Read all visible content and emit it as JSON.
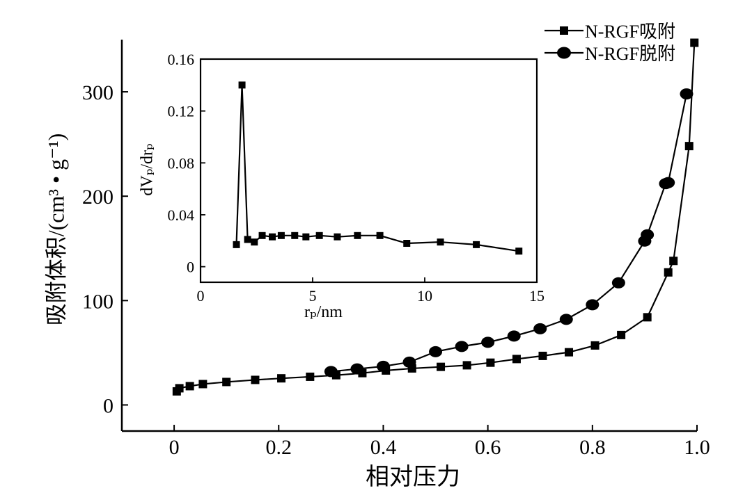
{
  "chart_data": [
    {
      "type": "line",
      "xlabel": "相对压力",
      "ylabel": "吸附体积/(cm³ • g⁻¹)",
      "xlim": [
        -0.1,
        1.0
      ],
      "ylim": [
        -25,
        350
      ],
      "xticks": [
        0,
        0.2,
        0.4,
        0.6,
        0.8,
        1.0
      ],
      "xtick_labels": [
        "0",
        "0.2",
        "0.4",
        "0.6",
        "0.8",
        "1.0"
      ],
      "yticks": [
        0,
        100,
        200,
        300
      ],
      "ytick_labels": [
        "0",
        "100",
        "200",
        "300"
      ],
      "legend": "top-right",
      "grid": false,
      "series": [
        {
          "name": "N-RGF吸附",
          "marker": "square",
          "x": [
            0.005,
            0.01,
            0.03,
            0.055,
            0.1,
            0.155,
            0.205,
            0.26,
            0.31,
            0.36,
            0.405,
            0.455,
            0.51,
            0.56,
            0.605,
            0.655,
            0.705,
            0.755,
            0.805,
            0.855,
            0.905,
            0.945,
            0.955,
            0.985,
            0.995
          ],
          "y": [
            13,
            16,
            18,
            20,
            22,
            24,
            25.5,
            27,
            28.5,
            30.5,
            33,
            35,
            36.5,
            38,
            40.5,
            44,
            47,
            50.5,
            57,
            67,
            84,
            127,
            138,
            248,
            347
          ]
        },
        {
          "name": "N-RGF脱附",
          "marker": "circle",
          "x": [
            0.3,
            0.35,
            0.4,
            0.45,
            0.5,
            0.55,
            0.6,
            0.65,
            0.7,
            0.75,
            0.8,
            0.85,
            0.9,
            0.905,
            0.94,
            0.945,
            0.98
          ],
          "y": [
            32,
            34.5,
            37,
            41,
            51,
            56,
            60,
            66,
            73,
            82,
            96,
            117,
            157,
            163,
            212,
            213,
            298
          ]
        }
      ]
    },
    {
      "type": "line",
      "xlabel": "rₚ/nm",
      "ylabel": "dVₚ/drₚ",
      "xlim": [
        0,
        15
      ],
      "ylim": [
        -0.012,
        0.16
      ],
      "xticks": [
        0,
        5,
        10,
        15
      ],
      "xtick_labels": [
        "0",
        "5",
        "10",
        "15"
      ],
      "yticks": [
        0,
        0.04,
        0.08,
        0.12,
        0.16
      ],
      "ytick_labels": [
        "0",
        "0.04",
        "0.08",
        "0.12",
        "0.16"
      ],
      "grid": false,
      "series": [
        {
          "marker": "square",
          "x": [
            1.6,
            1.85,
            2.1,
            2.4,
            2.75,
            3.2,
            3.6,
            4.2,
            4.7,
            5.3,
            6.1,
            7.0,
            8.0,
            9.2,
            10.7,
            12.3,
            14.2
          ],
          "y": [
            0.017,
            0.14,
            0.021,
            0.019,
            0.024,
            0.023,
            0.024,
            0.024,
            0.023,
            0.024,
            0.023,
            0.024,
            0.024,
            0.018,
            0.019,
            0.017,
            0.012
          ]
        }
      ]
    }
  ]
}
